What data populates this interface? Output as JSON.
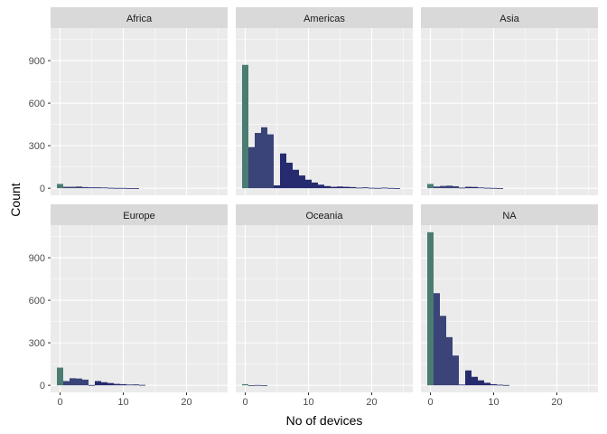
{
  "chart_data": {
    "type": "bar",
    "subtype": "faceted-histogram",
    "xlabel": "No of devices",
    "ylabel": "Count",
    "xlim": [
      -1.5,
      26.5
    ],
    "ylim": [
      -50,
      1130
    ],
    "x_ticks": [
      0,
      10,
      20
    ],
    "x_tick_labels": [
      "0",
      "10",
      "20"
    ],
    "y_ticks": [
      0,
      300,
      600,
      900
    ],
    "y_tick_labels": [
      "0",
      "300",
      "600",
      "900"
    ],
    "bin_width": 1,
    "grid": true,
    "legend": "none",
    "colors": {
      "panel_bg": "#ebebeb",
      "strip_bg": "#d9d9d9",
      "grid": "#ffffff",
      "bar_zero": "#4a7c72",
      "bar_low": "#3a4478",
      "bar_high": "#262a6e"
    },
    "facets": [
      {
        "label": "Africa",
        "bins": [
          [
            0,
            30
          ],
          [
            1,
            10
          ],
          [
            2,
            10
          ],
          [
            3,
            12
          ],
          [
            4,
            8
          ],
          [
            5,
            6
          ],
          [
            6,
            6
          ],
          [
            7,
            5
          ],
          [
            8,
            3
          ],
          [
            9,
            2
          ],
          [
            10,
            2
          ],
          [
            11,
            1
          ],
          [
            12,
            1
          ]
        ]
      },
      {
        "label": "Americas",
        "bins": [
          [
            0,
            870
          ],
          [
            1,
            290
          ],
          [
            2,
            390
          ],
          [
            3,
            430
          ],
          [
            4,
            380
          ],
          [
            5,
            20
          ],
          [
            6,
            245
          ],
          [
            7,
            180
          ],
          [
            8,
            130
          ],
          [
            9,
            90
          ],
          [
            10,
            60
          ],
          [
            11,
            40
          ],
          [
            12,
            25
          ],
          [
            13,
            15
          ],
          [
            14,
            10
          ],
          [
            15,
            12
          ],
          [
            16,
            10
          ],
          [
            17,
            8
          ],
          [
            18,
            4
          ],
          [
            19,
            6
          ],
          [
            20,
            3
          ],
          [
            21,
            2
          ],
          [
            22,
            4
          ],
          [
            23,
            2
          ],
          [
            24,
            1
          ]
        ]
      },
      {
        "label": "Asia",
        "bins": [
          [
            0,
            30
          ],
          [
            1,
            12
          ],
          [
            2,
            16
          ],
          [
            3,
            18
          ],
          [
            4,
            14
          ],
          [
            5,
            4
          ],
          [
            6,
            10
          ],
          [
            7,
            9
          ],
          [
            8,
            5
          ],
          [
            9,
            3
          ],
          [
            10,
            2
          ],
          [
            11,
            1
          ]
        ]
      },
      {
        "label": "Europe",
        "bins": [
          [
            0,
            125
          ],
          [
            1,
            30
          ],
          [
            2,
            50
          ],
          [
            3,
            48
          ],
          [
            4,
            40
          ],
          [
            5,
            2
          ],
          [
            6,
            30
          ],
          [
            7,
            22
          ],
          [
            8,
            16
          ],
          [
            9,
            10
          ],
          [
            10,
            8
          ],
          [
            11,
            5
          ],
          [
            12,
            6
          ],
          [
            13,
            3
          ]
        ]
      },
      {
        "label": "Oceania",
        "bins": [
          [
            0,
            8
          ],
          [
            1,
            1
          ],
          [
            2,
            2
          ],
          [
            3,
            1
          ]
        ]
      },
      {
        "label": "NA",
        "bins": [
          [
            0,
            1080
          ],
          [
            1,
            650
          ],
          [
            2,
            490
          ],
          [
            3,
            340
          ],
          [
            4,
            210
          ],
          [
            5,
            5
          ],
          [
            6,
            105
          ],
          [
            7,
            60
          ],
          [
            8,
            35
          ],
          [
            9,
            18
          ],
          [
            10,
            8
          ],
          [
            11,
            4
          ],
          [
            12,
            2
          ]
        ]
      }
    ]
  }
}
